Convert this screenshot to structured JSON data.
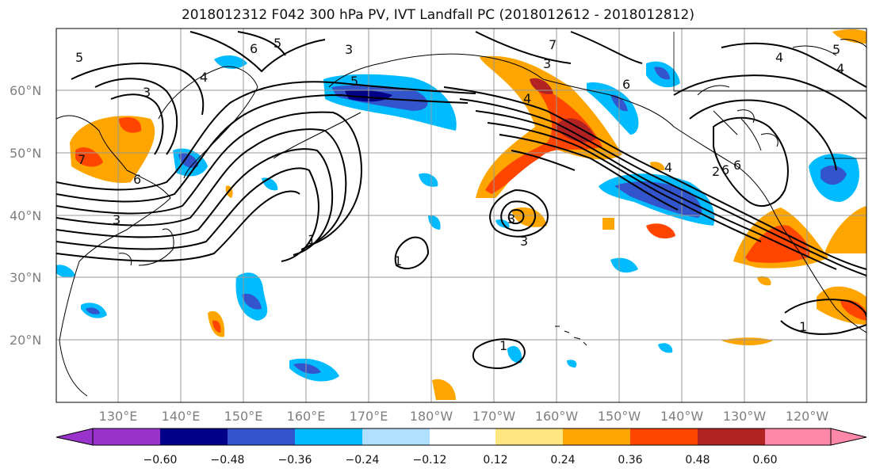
{
  "title": "2018012312 F042 300 hPa PV, IVT Landfall PC (2018012612 - 2018012812)",
  "map": {
    "lat_labels": [
      "60°N",
      "50°N",
      "40°N",
      "30°N",
      "20°N"
    ],
    "lon_labels": [
      "130°E",
      "140°E",
      "150°E",
      "160°E",
      "170°E",
      "180°W",
      "170°W",
      "160°W",
      "150°W",
      "140°W",
      "130°W",
      "120°W"
    ],
    "contour_labels": [
      "5",
      "6",
      "5",
      "3",
      "4",
      "3",
      "5",
      "7",
      "4",
      "6",
      "4",
      "3",
      "6",
      "4",
      "2",
      "5",
      "6",
      "4",
      "7",
      "6",
      "3",
      "3",
      "1",
      "3",
      "1",
      "1",
      "1"
    ]
  },
  "colorbar": {
    "ticks": [
      "−0.60",
      "−0.48",
      "−0.36",
      "−0.24",
      "−0.12",
      "0.12",
      "0.24",
      "0.36",
      "0.48",
      "0.60"
    ],
    "colors": [
      "#9933cc",
      "#000088",
      "#3355cc",
      "#00bbff",
      "#b0e0ff",
      "#ffffff",
      "#ffe680",
      "#ffa500",
      "#ff4500",
      "#b22222",
      "#ff88aa"
    ]
  }
}
